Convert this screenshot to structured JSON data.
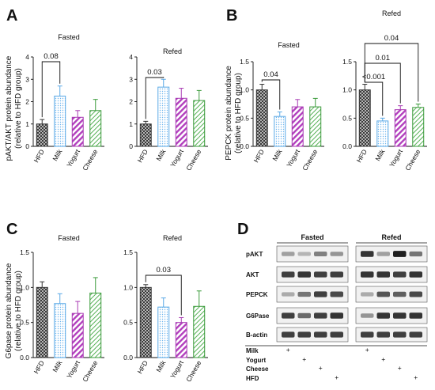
{
  "colors": {
    "hfd": "#333333",
    "milk": "#5aa9e6",
    "yogurt": "#a83ab3",
    "cheese": "#3a9a3a",
    "axis": "#111111"
  },
  "chart_data": [
    {
      "type": "bar",
      "panel": "A",
      "title": "Fasted",
      "ylabel": [
        "pAKT/AKT protein abundance",
        "(relative to HFD group)"
      ],
      "categories": [
        "HFD",
        "Milk",
        "Yogurt",
        "Cheese"
      ],
      "values": [
        1.0,
        2.25,
        1.3,
        1.6
      ],
      "errors": [
        0.2,
        0.45,
        0.3,
        0.5
      ],
      "ylim": [
        0,
        4
      ],
      "yticks": [
        0,
        1,
        2,
        3,
        4
      ],
      "annotations": [
        {
          "from": "HFD",
          "to": "Milk",
          "label": "0.08"
        }
      ]
    },
    {
      "type": "bar",
      "panel": "",
      "title": "Refed",
      "ylabel": [],
      "categories": [
        "HFD",
        "Milk",
        "Yogurt",
        "Cheese"
      ],
      "values": [
        1.0,
        2.65,
        2.15,
        2.05
      ],
      "errors": [
        0.12,
        0.35,
        0.45,
        0.45
      ],
      "ylim": [
        0,
        4
      ],
      "yticks": [
        0,
        1,
        2,
        3,
        4
      ],
      "annotations": [
        {
          "from": "HFD",
          "to": "Milk",
          "label": "0.03"
        }
      ]
    },
    {
      "type": "bar",
      "panel": "B",
      "title": "Fasted",
      "ylabel": [
        "PEPCK protein abundance",
        "(relative to HFD group)"
      ],
      "categories": [
        "HFD",
        "Milk",
        "Yogurt",
        "Cheese"
      ],
      "values": [
        1.0,
        0.53,
        0.7,
        0.7
      ],
      "errors": [
        0.1,
        0.08,
        0.13,
        0.15
      ],
      "ylim": [
        0,
        1.5
      ],
      "yticks": [
        0,
        0.5,
        1.0,
        1.5
      ],
      "annotations": [
        {
          "from": "HFD",
          "to": "Milk",
          "label": "0.04"
        }
      ]
    },
    {
      "type": "bar",
      "panel": "",
      "title": "Refed",
      "ylabel": [],
      "categories": [
        "HFD",
        "Milk",
        "Yogurt",
        "Cheese"
      ],
      "values": [
        1.0,
        0.45,
        0.65,
        0.69
      ],
      "errors": [
        0.1,
        0.05,
        0.07,
        0.06
      ],
      "ylim": [
        0,
        1.5
      ],
      "yticks": [
        0,
        0.5,
        1.0,
        1.5
      ],
      "annotations": [
        {
          "from": "HFD",
          "to": "Milk",
          "label": "<0.001"
        },
        {
          "from": "HFD",
          "to": "Yogurt",
          "label": "0.01"
        },
        {
          "from": "HFD",
          "to": "Cheese",
          "label": "0.04"
        }
      ]
    },
    {
      "type": "bar",
      "panel": "C",
      "title": "Fasted",
      "ylabel": [
        "G6pase protein abundance",
        "(relative to HFD group)"
      ],
      "categories": [
        "HFD",
        "Milk",
        "Yogurt",
        "Cheese"
      ],
      "values": [
        1.0,
        0.77,
        0.63,
        0.92
      ],
      "errors": [
        0.08,
        0.14,
        0.17,
        0.22
      ],
      "ylim": [
        0,
        1.5
      ],
      "yticks": [
        0,
        0.5,
        1.0,
        1.5
      ],
      "annotations": []
    },
    {
      "type": "bar",
      "panel": "",
      "title": "Refed",
      "ylabel": [],
      "categories": [
        "HFD",
        "Milk",
        "Yogurt",
        "Cheese"
      ],
      "values": [
        1.0,
        0.72,
        0.5,
        0.73
      ],
      "errors": [
        0.04,
        0.13,
        0.07,
        0.22
      ],
      "ylim": [
        0,
        1.5
      ],
      "yticks": [
        0,
        0.5,
        1.0,
        1.5
      ],
      "annotations": [
        {
          "from": "HFD",
          "to": "Yogurt",
          "label": "0.03"
        }
      ]
    }
  ],
  "blot": {
    "panel": "D",
    "groups": [
      "Fasted",
      "Refed"
    ],
    "proteins": [
      "pAKT",
      "AKT",
      "PEPCK",
      "G6Pase",
      "B-actin"
    ],
    "conditions": [
      "Milk",
      "Yogurt",
      "Cheese",
      "HFD"
    ],
    "plus": "+",
    "band_intensity": {
      "pAKT": [
        0.35,
        0.25,
        0.5,
        0.4,
        0.85,
        0.35,
        0.95,
        0.55
      ],
      "AKT": [
        0.8,
        0.85,
        0.8,
        0.8,
        0.85,
        0.85,
        0.8,
        0.85
      ],
      "PEPCK": [
        0.3,
        0.55,
        0.8,
        0.75,
        0.3,
        0.7,
        0.65,
        0.75
      ],
      "G6Pase": [
        0.8,
        0.6,
        0.8,
        0.85,
        0.4,
        0.85,
        0.85,
        0.85
      ],
      "B-actin": [
        0.8,
        0.8,
        0.8,
        0.8,
        0.8,
        0.8,
        0.8,
        0.8
      ]
    }
  }
}
